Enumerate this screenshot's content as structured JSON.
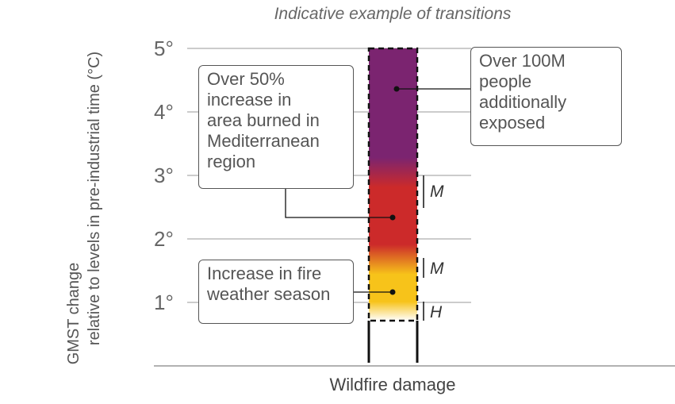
{
  "title": "Indicative example of transitions",
  "y_axis_label_line1": "GMST change",
  "y_axis_label_line2": "relative to levels in pre-industrial time (°C)",
  "x_axis_label": "Wildfire damage",
  "y_ticks": [
    "1°",
    "2°",
    "3°",
    "4°",
    "5°"
  ],
  "colors": {
    "very_high": "#7b2470",
    "high": "#cc2a2a",
    "moderate": "#f7c31a",
    "text": "#555555",
    "grid": "#bbbbbb"
  },
  "chart_data": {
    "type": "burning-ember",
    "title": "Indicative example of transitions",
    "ylabel": "GMST change relative to levels in pre-industrial time (°C)",
    "xlabel": "Wildfire damage",
    "ylim": [
      0,
      5
    ],
    "transitions": [
      {
        "from": "moderate",
        "to": "high",
        "lower": 1.3,
        "upper": 1.7,
        "confidence": "M"
      },
      {
        "from": "high",
        "to": "very_high",
        "lower": 2.6,
        "upper": 3.0,
        "confidence": "M"
      },
      {
        "from": "undetectable",
        "to": "moderate",
        "lower": 0.7,
        "upper": 1.0,
        "confidence": "H"
      }
    ]
  },
  "confidence_labels": {
    "t1": "M",
    "t2": "M",
    "t3": "H"
  },
  "callouts": {
    "very_high": {
      "line1": "Over 100M",
      "line2": "people",
      "line3": "additionally",
      "line4": "exposed"
    },
    "high": {
      "line1": "Over 50%",
      "line2": "increase in",
      "line3": "area burned in",
      "line4": "Mediterranean",
      "line5": "region"
    },
    "moderate": {
      "line1": "Increase in fire",
      "line2": "weather season"
    }
  }
}
